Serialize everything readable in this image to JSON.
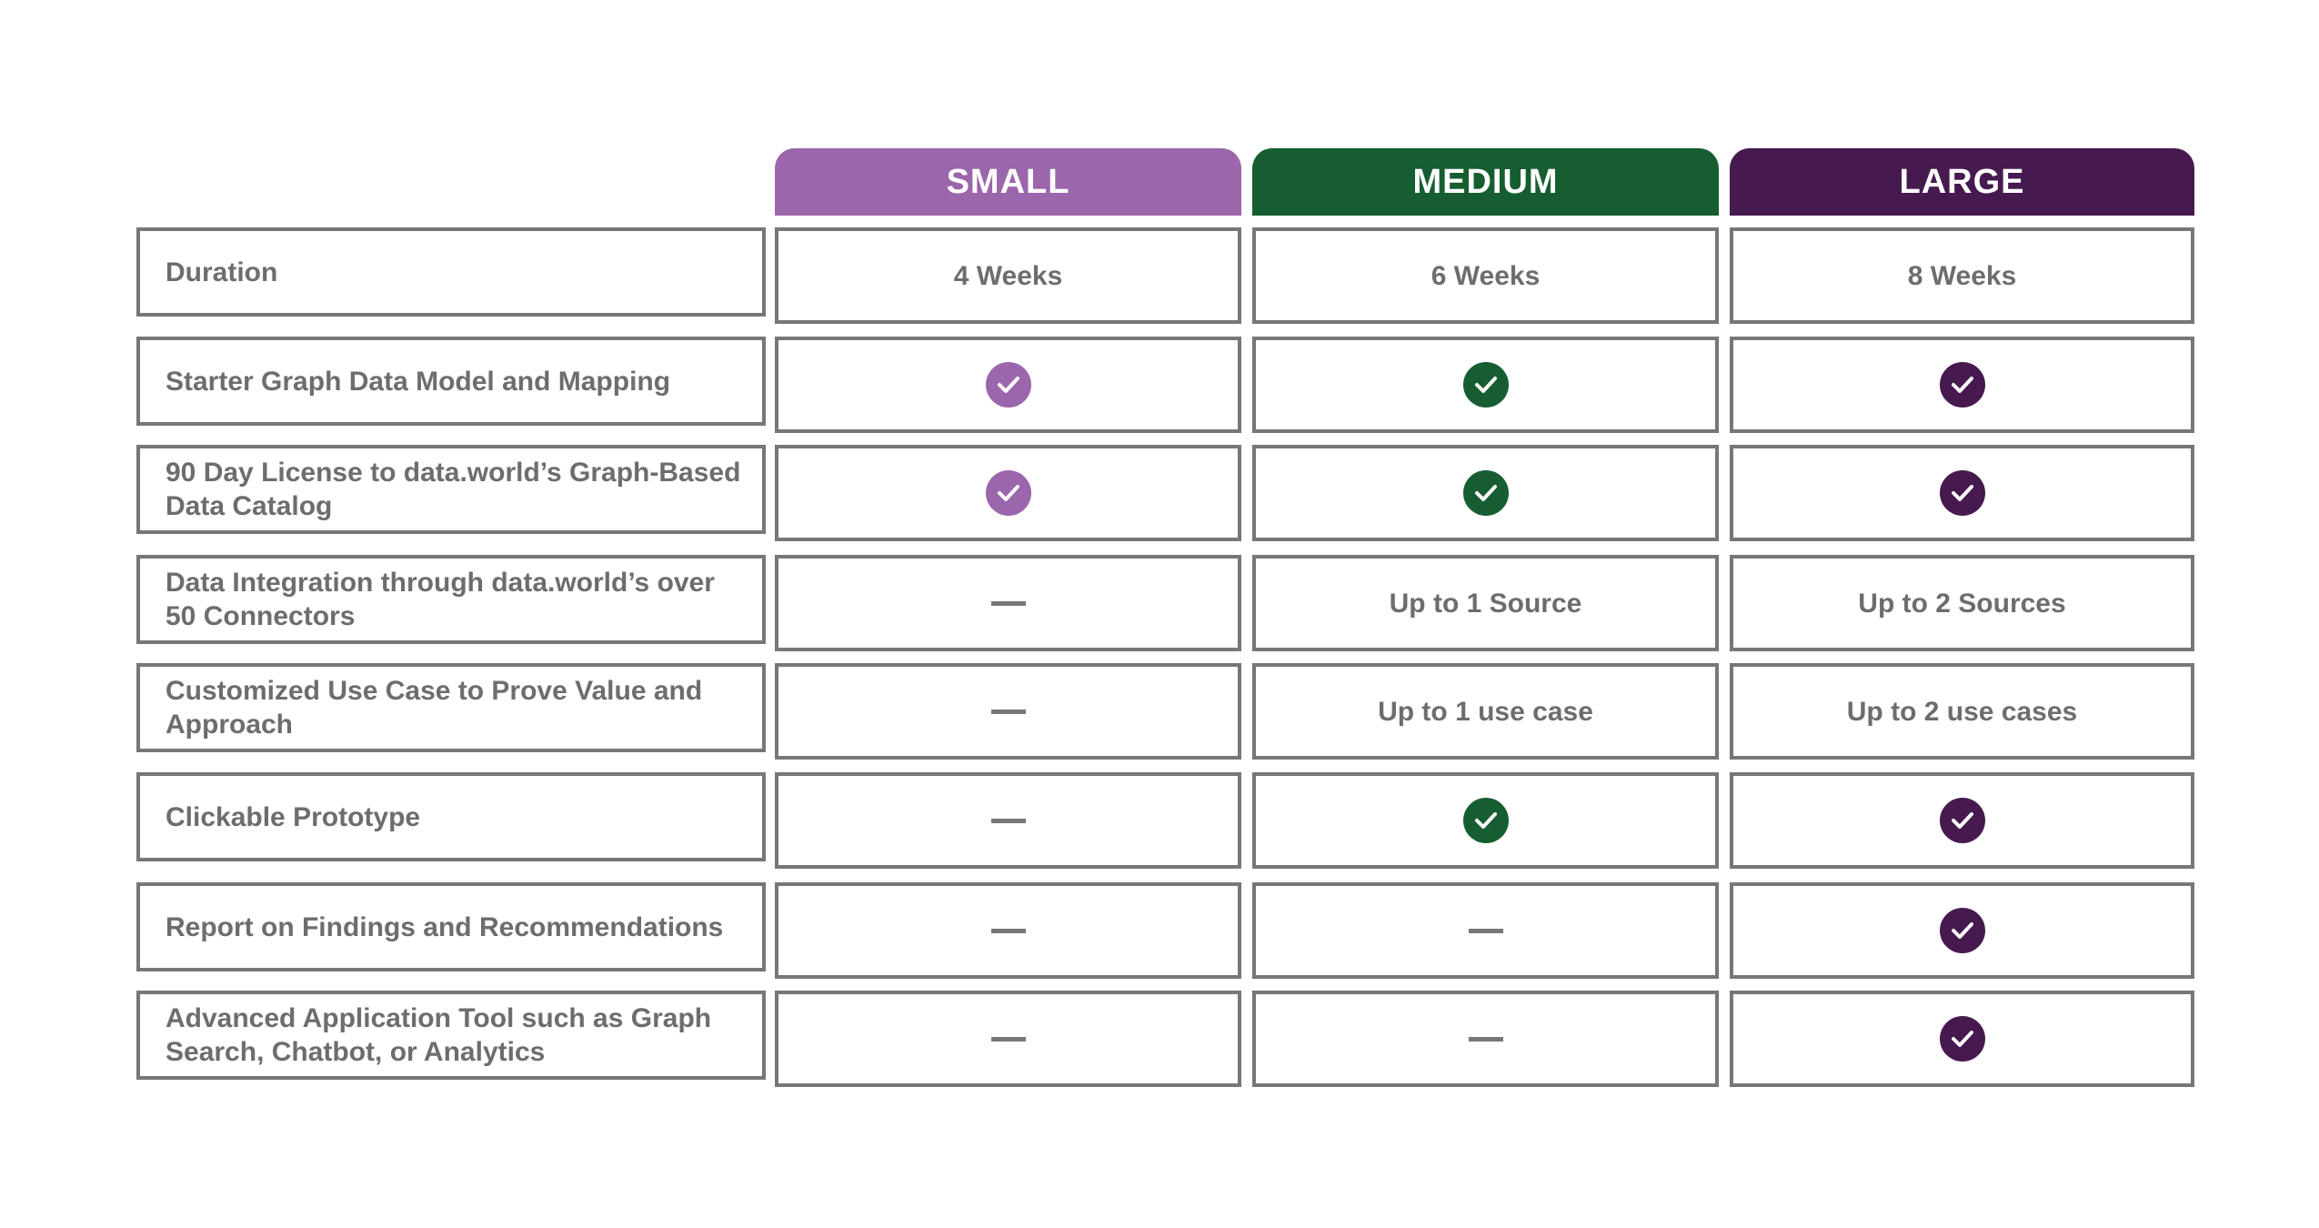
{
  "colors": {
    "small": "#9b66ab",
    "medium": "#165e31",
    "large": "#46194f"
  },
  "columns": [
    "SMALL",
    "MEDIUM",
    "LARGE"
  ],
  "rows": [
    {
      "label": "Duration",
      "values": [
        "4 Weeks",
        "6 Weeks",
        "8 Weeks"
      ]
    },
    {
      "label": "Starter Graph Data Model and Mapping",
      "values": [
        "check",
        "check",
        "check"
      ]
    },
    {
      "label": "90 Day License to data.world’s Graph-Based Data Catalog",
      "values": [
        "check",
        "check",
        "check"
      ]
    },
    {
      "label": "Data Integration through data.world’s over 50 Connectors",
      "values": [
        "dash",
        "Up to 1 Source",
        "Up to 2 Sources"
      ]
    },
    {
      "label": "Customized Use Case to Prove Value and Approach",
      "values": [
        "dash",
        "Up to 1 use case",
        "Up to 2 use cases"
      ]
    },
    {
      "label": "Clickable Prototype",
      "values": [
        "dash",
        "check",
        "check"
      ]
    },
    {
      "label": "Report on Findings and Recommendations",
      "values": [
        "dash",
        "dash",
        "check"
      ]
    },
    {
      "label": "Advanced Application Tool such as Graph Search, Chatbot, or Analytics",
      "values": [
        "dash",
        "dash",
        "check"
      ]
    }
  ]
}
